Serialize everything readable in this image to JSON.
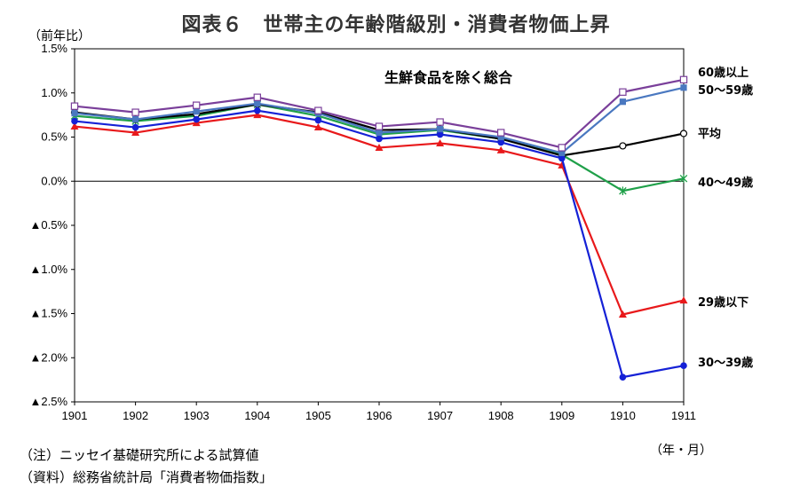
{
  "title": "図表６　世帯主の年齢階級別・消費者物価上昇",
  "y_unit": "（前年比）",
  "x_unit": "（年・月）",
  "notes": [
    "（注）ニッセイ基礎研究所による試算値",
    "（資料）総務省統計局「消費者物価指数」"
  ],
  "chart_data": {
    "type": "line",
    "title": "図表６　世帯主の年齢階級別・消費者物価上昇",
    "annotation": "生鮮食品を除く総合",
    "x": [
      "1901",
      "1902",
      "1903",
      "1904",
      "1905",
      "1906",
      "1907",
      "1908",
      "1909",
      "1910",
      "1911"
    ],
    "ylim": [
      -2.5,
      1.5
    ],
    "yticks": [
      {
        "v": 1.5,
        "label": "1.5%"
      },
      {
        "v": 1.0,
        "label": "1.0%"
      },
      {
        "v": 0.5,
        "label": "0.5%"
      },
      {
        "v": 0.0,
        "label": "0.0%"
      },
      {
        "v": -0.5,
        "label": "▲0.5%"
      },
      {
        "v": -1.0,
        "label": "▲1.0%"
      },
      {
        "v": -1.5,
        "label": "▲1.5%"
      },
      {
        "v": -2.0,
        "label": "▲2.0%"
      },
      {
        "v": -2.5,
        "label": "▲2.5%"
      }
    ],
    "grid": false,
    "legend": "labels at line ends (right)",
    "series": [
      {
        "name": "平均",
        "color": "#000000",
        "marker": "open-circle",
        "values": [
          0.78,
          0.7,
          0.76,
          0.87,
          0.78,
          0.58,
          0.59,
          0.48,
          0.29,
          0.4,
          0.54
        ]
      },
      {
        "name": "29歳以下",
        "color": "#e8191b",
        "marker": "triangle",
        "values": [
          0.62,
          0.55,
          0.66,
          0.75,
          0.61,
          0.38,
          0.43,
          0.35,
          0.18,
          -1.51,
          -1.35
        ]
      },
      {
        "name": "30～39歳",
        "color": "#1521d6",
        "marker": "filled-circle",
        "values": [
          0.68,
          0.61,
          0.7,
          0.8,
          0.69,
          0.48,
          0.53,
          0.44,
          0.26,
          -2.22,
          -2.09
        ]
      },
      {
        "name": "40～49歳",
        "color": "#1fa049",
        "marker": "star",
        "values": [
          0.74,
          0.68,
          0.74,
          0.87,
          0.74,
          0.53,
          0.58,
          0.48,
          0.3,
          -0.11,
          0.03
        ]
      },
      {
        "name": "50～59歳",
        "color": "#4a78c0",
        "marker": "filled-square",
        "values": [
          0.77,
          0.7,
          0.79,
          0.88,
          0.77,
          0.55,
          0.59,
          0.5,
          0.32,
          0.9,
          1.06
        ]
      },
      {
        "name": "60歳以上",
        "color": "#7a3f9a",
        "marker": "open-square",
        "values": [
          0.85,
          0.78,
          0.86,
          0.95,
          0.8,
          0.62,
          0.67,
          0.55,
          0.38,
          1.01,
          1.15
        ]
      }
    ]
  }
}
